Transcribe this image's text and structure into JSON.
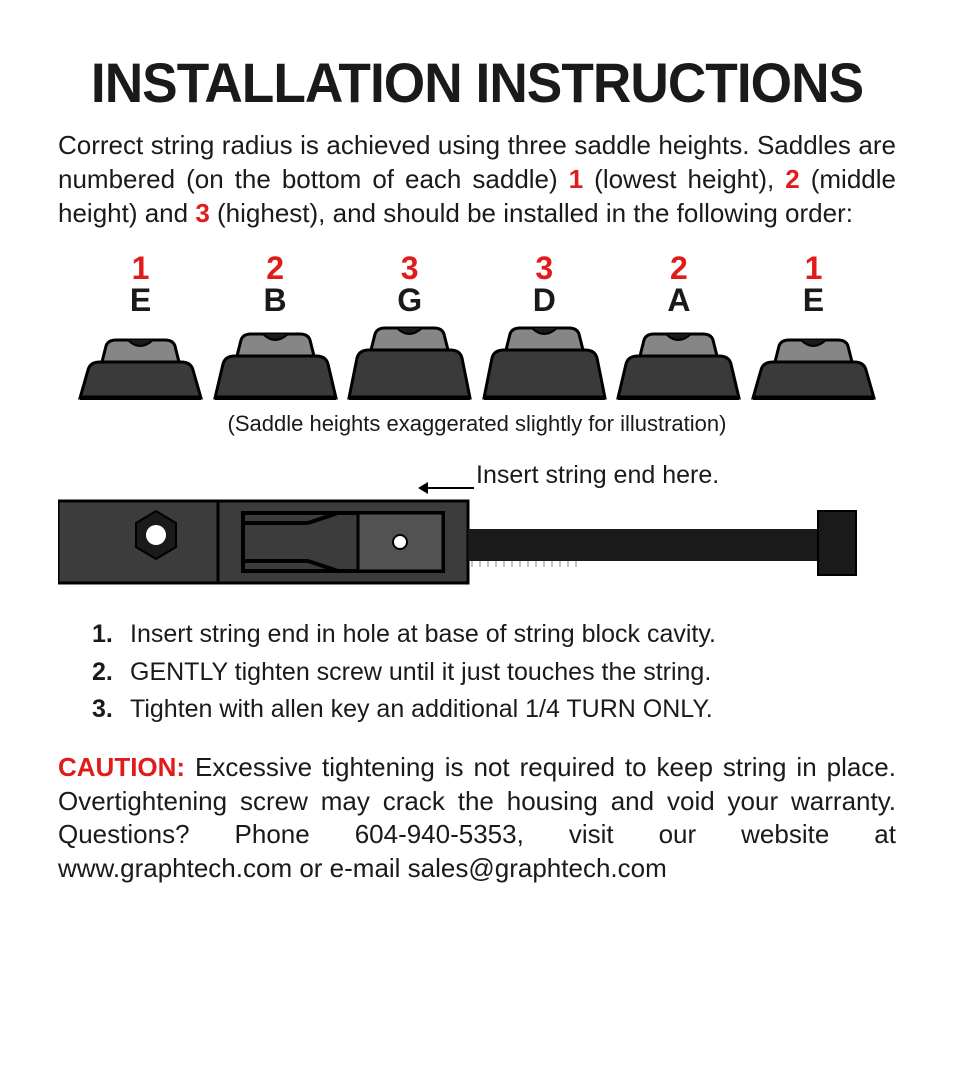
{
  "title": "INSTALLATION INSTRUCTIONS",
  "intro": {
    "pre": "Correct string radius is achieved using three saddle heights. Saddles are numbered (on the bottom of each saddle) ",
    "n1": "1",
    "mid1": " (lowest height), ",
    "n2": "2",
    "mid2": " (middle height) and ",
    "n3": "3",
    "post": " (highest), and should be installed in the following order:"
  },
  "saddles": [
    {
      "num": "1",
      "string": "E",
      "height": 1
    },
    {
      "num": "2",
      "string": "B",
      "height": 2
    },
    {
      "num": "3",
      "string": "G",
      "height": 3
    },
    {
      "num": "3",
      "string": "D",
      "height": 3
    },
    {
      "num": "2",
      "string": "A",
      "height": 2
    },
    {
      "num": "1",
      "string": "E",
      "height": 1
    }
  ],
  "saddle_note": "(Saddle heights exaggerated slightly for illustration)",
  "insert_label": "Insert string end here.",
  "steps": [
    {
      "n": "1.",
      "text": "Insert string end in hole at base of string block cavity."
    },
    {
      "n": "2.",
      "text": "GENTLY tighten screw until it just touches the string."
    },
    {
      "n": "3.",
      "text": "Tighten with allen key an additional 1/4 TURN ONLY."
    }
  ],
  "caution": {
    "label": "CAUTION:",
    "body": " Excessive tightening is not required to keep string in place. Overtightening screw may crack the housing and void your warranty. Questions? Phone 604-940-5353, visit our website at www.graphtech.com or e-mail sales@graphtech.com"
  },
  "colors": {
    "accent_red": "#e21a1a",
    "dark": "#1a1a1a",
    "saddle_outer": "#4a4a4a",
    "saddle_inner": "#8a8a8a",
    "saddle_base": "#2c2c2c",
    "screw": "#1a1a1a"
  }
}
